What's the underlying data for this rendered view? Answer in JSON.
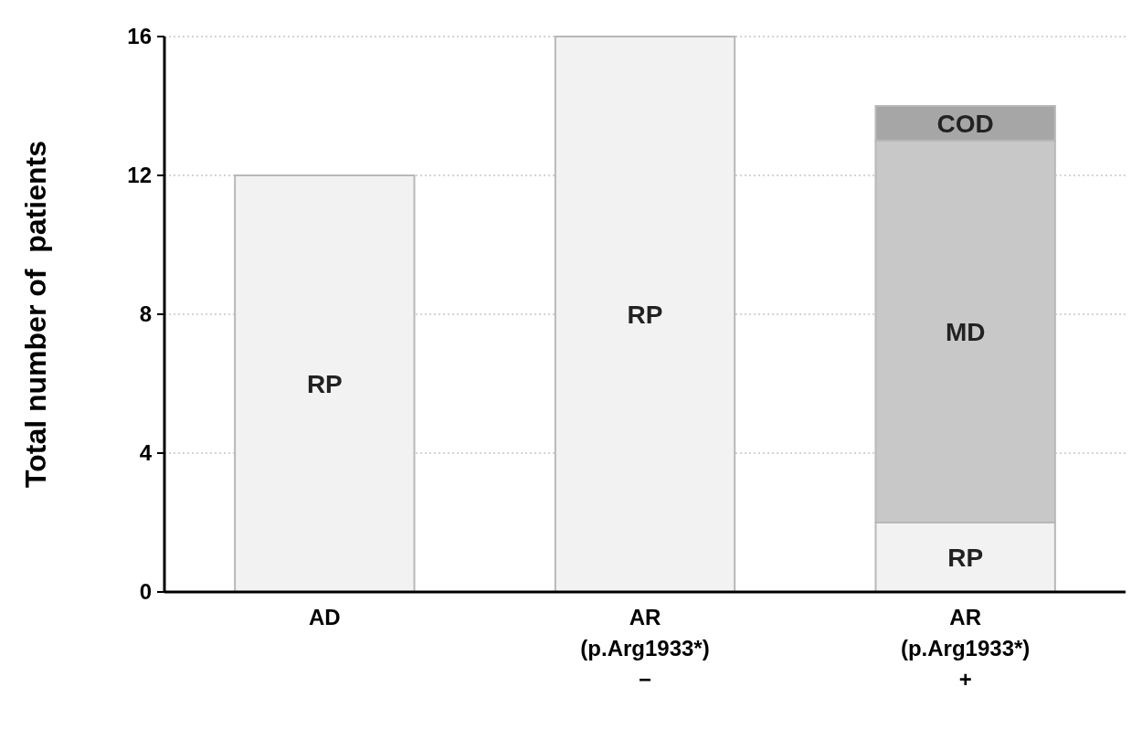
{
  "chart_data": {
    "type": "bar",
    "stacked": true,
    "ylabel": "Total number of  patients",
    "categories": [
      "AD",
      "AR\n(p.Arg1933*)\n−",
      "AR\n(p.Arg1933*)\n+"
    ],
    "series": [
      {
        "name": "RP",
        "color": "#f2f2f2",
        "values": [
          12,
          16,
          2
        ]
      },
      {
        "name": "MD",
        "color": "#c8c8c8",
        "values": [
          null,
          null,
          11
        ]
      },
      {
        "name": "COD",
        "color": "#a6a6a6",
        "values": [
          null,
          null,
          1
        ]
      }
    ],
    "ylim": [
      0,
      16
    ],
    "yticks": [
      0,
      4,
      8,
      12,
      16
    ],
    "grid": "y"
  }
}
